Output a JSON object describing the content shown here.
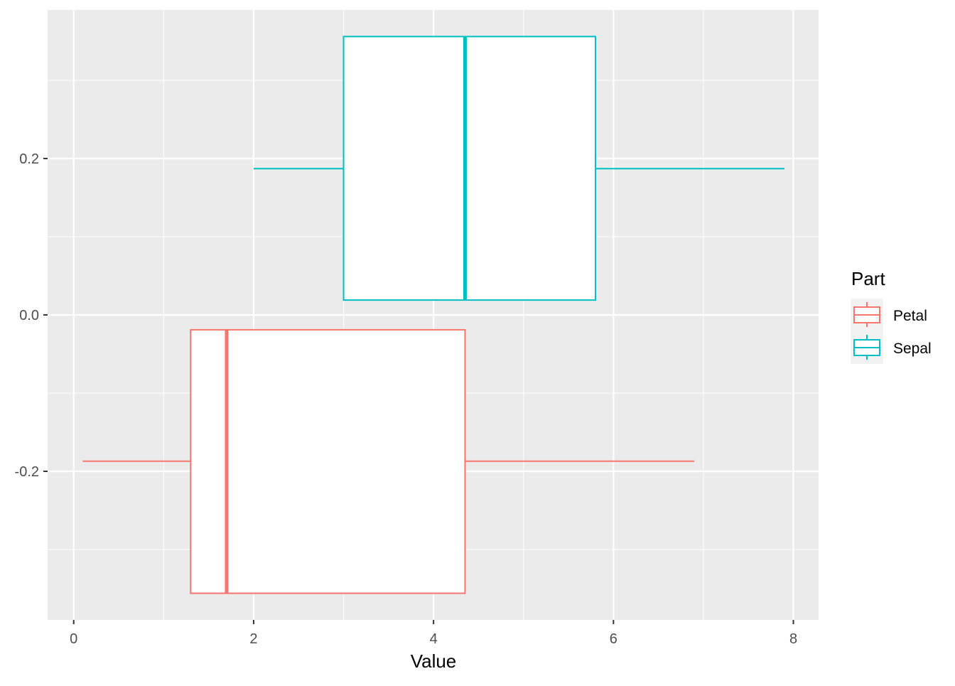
{
  "chart_data": {
    "type": "boxplot",
    "orientation": "horizontal",
    "xlabel": "Value",
    "ylabel": "",
    "xlim": [
      -0.29,
      8.28
    ],
    "ylim": [
      -0.39,
      0.39
    ],
    "x_ticks": [
      0,
      2,
      4,
      6,
      8
    ],
    "x_tick_labels": [
      "0",
      "2",
      "4",
      "6",
      "8"
    ],
    "y_ticks": [
      -0.2,
      0.0,
      0.2
    ],
    "y_tick_labels": [
      "-0.2",
      "0.0",
      "0.2"
    ],
    "grid": true,
    "panel_background": "#EBEBEB",
    "legend": {
      "title": "Part",
      "placement": "right",
      "entries": [
        "Petal",
        "Sepal"
      ]
    },
    "series": [
      {
        "name": "Petal",
        "color": "#F8766D",
        "min": 0.1,
        "q1": 1.3,
        "median": 1.7,
        "q3": 4.35,
        "max": 6.9,
        "y_low": -0.356,
        "y_high": -0.019,
        "y_whisker": -0.187
      },
      {
        "name": "Sepal",
        "color": "#00BFC4",
        "min": 2.0,
        "q1": 3.0,
        "median": 4.35,
        "q3": 5.8,
        "max": 7.9,
        "y_low": 0.019,
        "y_high": 0.356,
        "y_whisker": 0.187
      }
    ]
  }
}
